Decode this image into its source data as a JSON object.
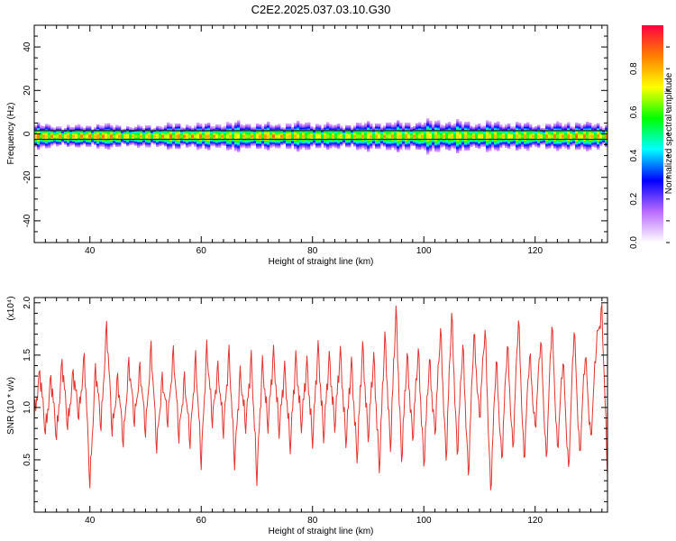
{
  "title": "C2E2.2025.037.03.10.G30",
  "chart_data": [
    {
      "type": "heatmap",
      "title": "C2E2.2025.037.03.10.G30",
      "xlabel": "Height of straight line (km)",
      "ylabel": "Frequency (Hz)",
      "xlim": [
        30,
        133
      ],
      "ylim": [
        -50,
        50
      ],
      "x_ticks": [
        40,
        60,
        80,
        100,
        120
      ],
      "y_ticks": [
        40,
        20,
        0,
        -20,
        -40
      ],
      "colorbar": {
        "label": "Normalized spectral amplitude",
        "range": [
          0,
          1
        ],
        "ticks": [
          0.0,
          0.2,
          0.4,
          0.6,
          0.8
        ],
        "colors": [
          "#ffffff",
          "#b96bff",
          "#0000ff",
          "#00ffff",
          "#00ff00",
          "#ffff00",
          "#ff7f00",
          "#ff0040"
        ]
      },
      "reference_lines_hz": [
        1.5,
        -2.5
      ],
      "band": {
        "center_hz": -1.0,
        "halfwidth_hz": [
          6,
          5,
          6,
          5,
          6,
          6,
          7,
          6,
          7,
          6,
          7,
          7,
          8,
          7,
          7,
          6,
          7,
          6
        ],
        "peak_amplitude": [
          0.9,
          0.85,
          0.9,
          0.8,
          0.9,
          0.9,
          0.8,
          0.9,
          0.8,
          0.8,
          0.85,
          0.85,
          0.8,
          0.8,
          0.8,
          0.85,
          0.9,
          0.85
        ]
      }
    },
    {
      "type": "line",
      "xlabel": "Height of straight line (km)",
      "ylabel": "SNR (10 * v/v)",
      "y_multiplier": "(x10⁴)",
      "xlim": [
        30,
        133
      ],
      "ylim": [
        0,
        2.05
      ],
      "x_ticks": [
        40,
        60,
        80,
        100,
        120
      ],
      "y_ticks": [
        0.5,
        1.0,
        1.5,
        2.0
      ],
      "color": "#e3342f",
      "series": [
        {
          "x": [
            30,
            31,
            32,
            33,
            34,
            35,
            36,
            37,
            38,
            39,
            40,
            41,
            42,
            43,
            44,
            45,
            46,
            47,
            48,
            49,
            50,
            51,
            52,
            53,
            54,
            55,
            56,
            57,
            58,
            59,
            60,
            61,
            62,
            63,
            64,
            65,
            66,
            67,
            68,
            69,
            70,
            71,
            72,
            73,
            74,
            75,
            76,
            77,
            78,
            79,
            80,
            81,
            82,
            83,
            84,
            85,
            86,
            87,
            88,
            89,
            90,
            91,
            92,
            93,
            94,
            95,
            96,
            97,
            98,
            99,
            100,
            101,
            102,
            103,
            104,
            105,
            106,
            107,
            108,
            109,
            110,
            111,
            112,
            113,
            114,
            115,
            116,
            117,
            118,
            119,
            120,
            121,
            122,
            123,
            124,
            125,
            126,
            127,
            128,
            129,
            130,
            131,
            132,
            133
          ],
          "values": [
            0.9,
            1.35,
            0.75,
            1.3,
            0.7,
            1.45,
            0.8,
            1.35,
            0.9,
            1.5,
            0.25,
            1.4,
            0.8,
            1.8,
            0.75,
            1.3,
            0.65,
            1.45,
            0.85,
            1.4,
            0.75,
            1.6,
            0.6,
            1.3,
            0.85,
            1.55,
            0.7,
            1.3,
            0.65,
            1.5,
            0.45,
            1.6,
            0.85,
            1.4,
            0.75,
            1.55,
            0.45,
            1.35,
            0.8,
            1.5,
            0.3,
            1.45,
            0.8,
            1.55,
            0.75,
            1.4,
            0.6,
            1.5,
            0.8,
            1.45,
            0.65,
            1.6,
            0.7,
            1.5,
            0.8,
            1.55,
            0.65,
            1.45,
            0.5,
            1.6,
            0.7,
            1.5,
            0.4,
            1.7,
            0.6,
            1.95,
            0.5,
            1.5,
            0.7,
            1.55,
            0.45,
            1.45,
            0.75,
            1.75,
            0.5,
            1.9,
            0.55,
            1.6,
            0.35,
            1.7,
            0.9,
            1.75,
            0.2,
            1.45,
            0.5,
            1.6,
            0.6,
            1.85,
            0.5,
            1.5,
            0.8,
            1.65,
            0.5,
            1.8,
            0.6,
            1.45,
            0.4,
            1.75,
            0.55,
            1.5,
            0.7,
            1.6,
            1.95,
            0.35
          ]
        }
      ]
    }
  ]
}
